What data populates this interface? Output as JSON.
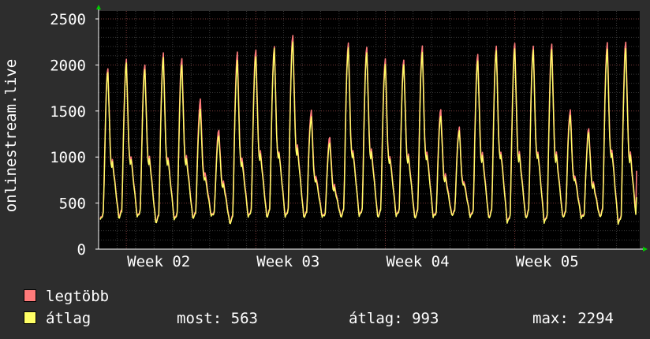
{
  "chart_data": {
    "type": "line",
    "title": "",
    "ylabel": "onlinestream.live",
    "xlabel": "",
    "ylim": [
      0,
      2500
    ],
    "yticks": [
      "0",
      "500",
      "1000",
      "1500",
      "2000",
      "2500"
    ],
    "x_labels": [
      "Week 02",
      "Week 03",
      "Week 04",
      "Week 05"
    ],
    "grid": true,
    "legend_position": "bottom-left",
    "series": [
      {
        "name": "legtöbb",
        "color": "#ff7b7b",
        "daily_max": [
          1970,
          2050,
          2010,
          2120,
          2080,
          1620,
          1300,
          2130,
          2170,
          2190,
          2330,
          1500,
          1220,
          2230,
          2200,
          2060,
          2060,
          2200,
          1520,
          1320,
          2120,
          2200,
          2240,
          2200,
          2230,
          1510,
          1310,
          2240,
          2250
        ],
        "daily_min": [
          330,
          360,
          360,
          300,
          330,
          350,
          370,
          290,
          360,
          360,
          360,
          360,
          360,
          360,
          370,
          360,
          370,
          350,
          360,
          380,
          360,
          350,
          300,
          350,
          300,
          360,
          350,
          360,
          290
        ],
        "last": 850
      },
      {
        "name": "átlag",
        "color": "#ffff66",
        "daily_max": [
          1930,
          2010,
          1960,
          2070,
          2010,
          1510,
          1240,
          2040,
          2100,
          2170,
          2260,
          1430,
          1160,
          2180,
          2140,
          2000,
          2010,
          2130,
          1450,
          1280,
          2050,
          2150,
          2180,
          2160,
          2170,
          1450,
          1270,
          2170,
          2180
        ],
        "daily_min": [
          320,
          340,
          350,
          290,
          320,
          340,
          360,
          280,
          350,
          350,
          350,
          350,
          350,
          350,
          360,
          350,
          360,
          340,
          350,
          370,
          350,
          340,
          290,
          340,
          290,
          350,
          340,
          350,
          280
        ],
        "last": 563
      }
    ]
  },
  "legend": {
    "max_label": "legtöbb",
    "avg_label": "átlag",
    "now_text": "most: 563",
    "avg_text": "átlag: 993",
    "max_text": "max: 2294"
  },
  "colors": {
    "background": "#2d2d2d",
    "plot_background": "#000000",
    "grid_major": "#7a3a3a",
    "grid_minor": "#3a3a3a",
    "axis": "#ffffff",
    "arrow": "#00cc00"
  }
}
